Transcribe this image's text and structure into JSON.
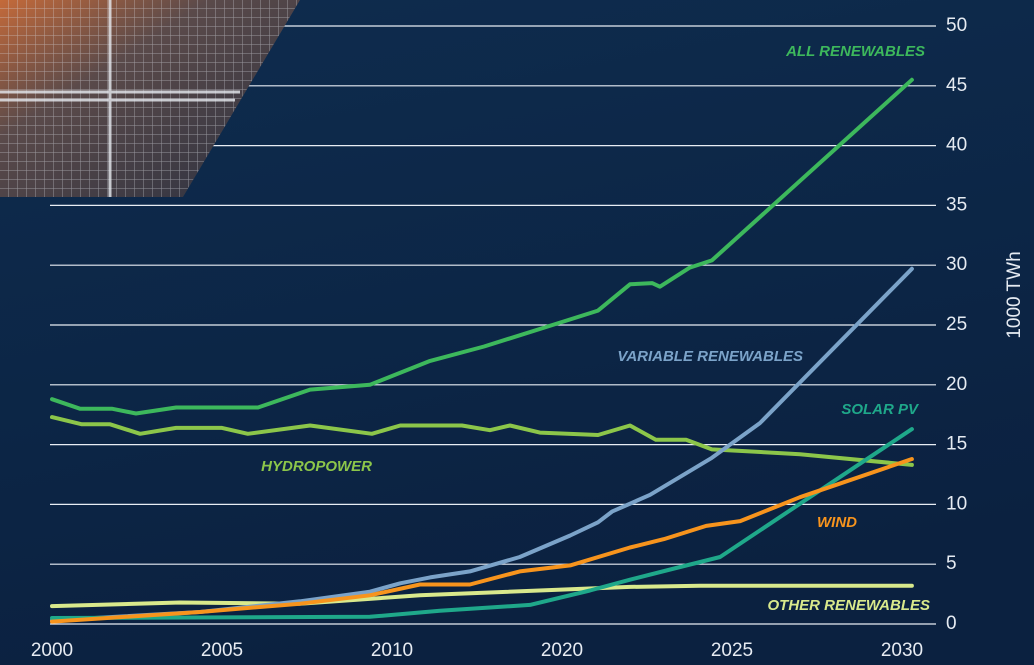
{
  "chart_data": {
    "type": "line",
    "y_label": "1000 TWh",
    "xlim": [
      2000,
      2026
    ],
    "xticks": [
      2000,
      2005,
      2010,
      {
        "value": 2015,
        "label": "2020"
      },
      {
        "value": 2020,
        "label": "2025"
      },
      {
        "value": 2025,
        "label": "2030"
      }
    ],
    "ylim": [
      0,
      50
    ],
    "yticks": [
      0,
      5,
      10,
      15,
      20,
      25,
      30,
      35,
      40,
      45,
      50
    ],
    "grid": true,
    "series": [
      {
        "name": "ALL RENEWABLES",
        "color": "#3db85c",
        "x": [
          2000,
          2000.82,
          2001.76,
          2002.47,
          2003.65,
          2006.06,
          2007.59,
          2009.35,
          2011.12,
          2012.71,
          2014.94,
          2016.06,
          2017,
          2017.65,
          2017.88,
          2018.76,
          2019.41,
          2025.29
        ],
        "values": [
          18.8,
          18,
          18,
          17.6,
          18.1,
          18.1,
          19.6,
          20,
          22,
          23.2,
          25.2,
          26.2,
          28.4,
          28.5,
          28.2,
          29.8,
          30.4,
          45.5
        ]
      },
      {
        "name": "VARIABLE RENEWABLES",
        "color": "#7ba3c9",
        "x": [
          2000,
          2004.35,
          2007.29,
          2009.35,
          2010.24,
          2011.12,
          2012.29,
          2013.76,
          2015.24,
          2016.06,
          2016.47,
          2017.59,
          2019.41,
          2020.82,
          2025.29
        ],
        "values": [
          0.3,
          1,
          1.9,
          2.7,
          3.4,
          3.9,
          4.4,
          5.6,
          7.4,
          8.5,
          9.4,
          10.8,
          13.9,
          16.8,
          29.7
        ]
      },
      {
        "name": "SOLAR PV",
        "color": "#1fa88a",
        "x": [
          2000,
          2009.35,
          2011.41,
          2014.06,
          2015.82,
          2017,
          2018.24,
          2019.65,
          2025.29
        ],
        "values": [
          0.5,
          0.6,
          1.1,
          1.6,
          2.8,
          3.7,
          4.6,
          5.6,
          16.3
        ]
      },
      {
        "name": "HYDROPOWER",
        "color": "#8cc64a",
        "x": [
          2000,
          2000.88,
          2001.71,
          2002.59,
          2003.65,
          2005,
          2005.76,
          2007.59,
          2009.41,
          2010.24,
          2012.06,
          2012.88,
          2013.47,
          2014.35,
          2016.06,
          2017,
          2017.76,
          2018.65,
          2019.41,
          2022,
          2025.29
        ],
        "values": [
          17.3,
          16.7,
          16.7,
          15.9,
          16.4,
          16.4,
          15.9,
          16.6,
          15.9,
          16.6,
          16.6,
          16.2,
          16.6,
          16,
          15.8,
          16.6,
          15.4,
          15.4,
          14.6,
          14.2,
          13.3
        ]
      },
      {
        "name": "WIND",
        "color": "#f7941d",
        "x": [
          2000,
          2004.35,
          2007.29,
          2009.35,
          2010.82,
          2012.29,
          2013.76,
          2015.24,
          2017,
          2018,
          2019.24,
          2020.24,
          2022,
          2025.29
        ],
        "values": [
          0.2,
          1,
          1.7,
          2.4,
          3.3,
          3.3,
          4.4,
          4.9,
          6.4,
          7.1,
          8.2,
          8.6,
          10.6,
          13.8
        ]
      },
      {
        "name": "OTHER RENEWABLES",
        "color": "#d9e98c",
        "x": [
          2000,
          2003.76,
          2007.29,
          2010.82,
          2017,
          2019.06,
          2025.29
        ],
        "values": [
          1.5,
          1.8,
          1.7,
          2.4,
          3.1,
          3.2,
          3.2
        ]
      }
    ]
  }
}
